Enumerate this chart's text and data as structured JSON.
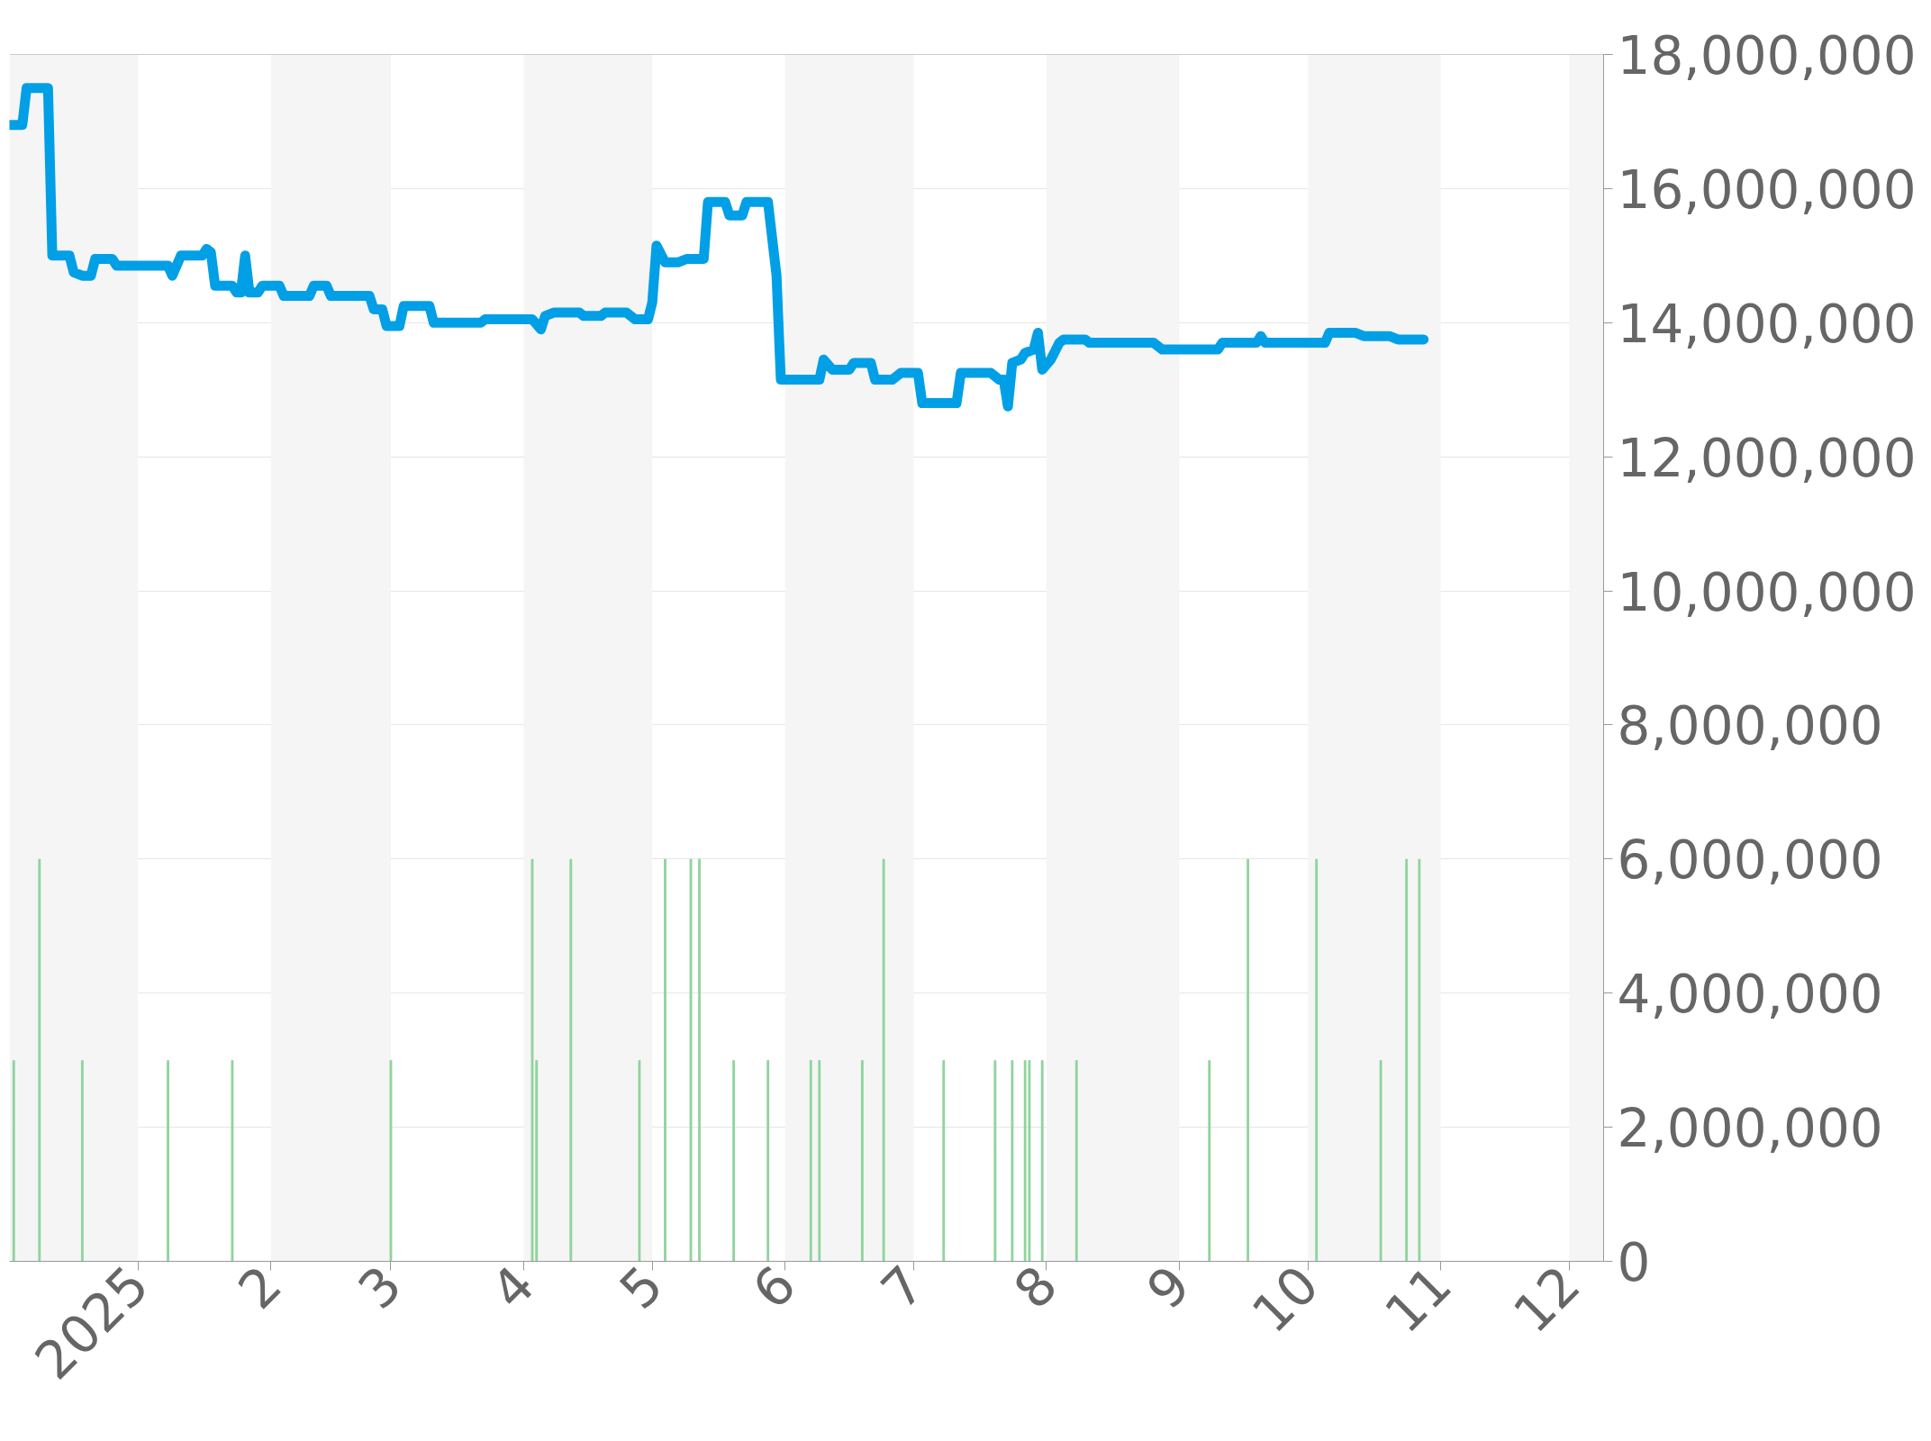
{
  "chart_data": {
    "type": "line",
    "xlim": [
      "2024-12-02",
      "2025-12-09"
    ],
    "xticks": [
      {
        "value": "2025-01-01",
        "label": "2025"
      },
      {
        "value": "2025-02-01",
        "label": "2"
      },
      {
        "value": "2025-03-01",
        "label": "3"
      },
      {
        "value": "2025-04-01",
        "label": "4"
      },
      {
        "value": "2025-05-01",
        "label": "5"
      },
      {
        "value": "2025-06-01",
        "label": "6"
      },
      {
        "value": "2025-07-01",
        "label": "7"
      },
      {
        "value": "2025-08-01",
        "label": "8"
      },
      {
        "value": "2025-09-01",
        "label": "9"
      },
      {
        "value": "2025-10-01",
        "label": "10"
      },
      {
        "value": "2025-11-01",
        "label": "11"
      },
      {
        "value": "2025-12-01",
        "label": "12"
      }
    ],
    "ylim": [
      0,
      18000000
    ],
    "yticks": [
      {
        "value": 0,
        "label": "0"
      },
      {
        "value": 2000000,
        "label": "2,000,000"
      },
      {
        "value": 4000000,
        "label": "4,000,000"
      },
      {
        "value": 6000000,
        "label": "6,000,000"
      },
      {
        "value": 8000000,
        "label": "8,000,000"
      },
      {
        "value": 10000000,
        "label": "10,000,000"
      },
      {
        "value": 12000000,
        "label": "12,000,000"
      },
      {
        "value": 14000000,
        "label": "14,000,000"
      },
      {
        "value": 16000000,
        "label": "16,000,000"
      },
      {
        "value": 18000000,
        "label": "18,000,000"
      }
    ],
    "grid": "y",
    "bands": [
      {
        "axis": "x",
        "from": "2024-12-02",
        "to": "2025-01-01",
        "color": "#f5f5f5"
      },
      {
        "axis": "x",
        "from": "2025-02-01",
        "to": "2025-03-01",
        "color": "#f5f5f5"
      },
      {
        "axis": "x",
        "from": "2025-04-01",
        "to": "2025-05-01",
        "color": "#f5f5f5"
      },
      {
        "axis": "x",
        "from": "2025-06-01",
        "to": "2025-07-01",
        "color": "#f5f5f5"
      },
      {
        "axis": "x",
        "from": "2025-08-01",
        "to": "2025-09-01",
        "color": "#f5f5f5"
      },
      {
        "axis": "x",
        "from": "2025-10-01",
        "to": "2025-11-01",
        "color": "#f5f5f5"
      },
      {
        "axis": "x",
        "from": "2025-12-01",
        "to": "2025-12-09",
        "color": "#f5f5f5"
      }
    ],
    "series": [
      {
        "type": "bar",
        "color": "#8fd49d",
        "x": [
          "2024-12-03",
          "2024-12-09",
          "2024-12-19",
          "2025-01-08",
          "2025-01-23",
          "2025-03-01",
          "2025-04-03",
          "2025-04-04",
          "2025-04-12",
          "2025-04-28",
          "2025-05-04",
          "2025-05-10",
          "2025-05-12",
          "2025-05-20",
          "2025-05-28",
          "2025-06-07",
          "2025-06-09",
          "2025-06-19",
          "2025-06-24",
          "2025-07-08",
          "2025-07-20",
          "2025-07-24",
          "2025-07-27",
          "2025-07-28",
          "2025-07-31",
          "2025-08-08",
          "2025-09-08",
          "2025-09-17",
          "2025-10-03",
          "2025-10-18",
          "2025-10-24",
          "2025-10-27"
        ],
        "values": [
          3000000,
          6000000,
          3000000,
          3000000,
          3000000,
          3000000,
          6000000,
          3000000,
          6000000,
          3000000,
          6000000,
          6000000,
          6000000,
          3000000,
          3000000,
          3000000,
          3000000,
          3000000,
          6000000,
          3000000,
          3000000,
          3000000,
          3000000,
          3000000,
          3000000,
          3000000,
          3000000,
          6000000,
          6000000,
          3000000,
          6000000,
          6000000
        ]
      },
      {
        "color": "#009fe6",
        "x": [
          "2024-12-02",
          "2024-12-05",
          "2024-12-06",
          "2024-12-11",
          "2024-12-12",
          "2024-12-16",
          "2024-12-17",
          "2024-12-19",
          "2024-12-21",
          "2024-12-22",
          "2024-12-26",
          "2024-12-27",
          "2025-01-08",
          "2025-01-09",
          "2025-01-11",
          "2025-01-16",
          "2025-01-17",
          "2025-01-18",
          "2025-01-19",
          "2025-01-23",
          "2025-01-24",
          "2025-01-25",
          "2025-01-26",
          "2025-01-27",
          "2025-01-29",
          "2025-01-30",
          "2025-02-03",
          "2025-02-04",
          "2025-02-10",
          "2025-02-11",
          "2025-02-14",
          "2025-02-15",
          "2025-02-24",
          "2025-02-25",
          "2025-02-27",
          "2025-02-28",
          "2025-03-03",
          "2025-03-04",
          "2025-03-10",
          "2025-03-11",
          "2025-03-22",
          "2025-03-23",
          "2025-04-03",
          "2025-04-05",
          "2025-04-06",
          "2025-04-08",
          "2025-04-14",
          "2025-04-15",
          "2025-04-19",
          "2025-04-20",
          "2025-04-25",
          "2025-04-27",
          "2025-04-30",
          "2025-05-01",
          "2025-05-02",
          "2025-05-04",
          "2025-05-07",
          "2025-05-09",
          "2025-05-13",
          "2025-05-14",
          "2025-05-18",
          "2025-05-19",
          "2025-05-22",
          "2025-05-23",
          "2025-05-28",
          "2025-05-30",
          "2025-05-31",
          "2025-06-09",
          "2025-06-10",
          "2025-06-12",
          "2025-06-16",
          "2025-06-17",
          "2025-06-21",
          "2025-06-22",
          "2025-06-26",
          "2025-06-28",
          "2025-07-02",
          "2025-07-03",
          "2025-07-11",
          "2025-07-12",
          "2025-07-19",
          "2025-07-21",
          "2025-07-22",
          "2025-07-23",
          "2025-07-24",
          "2025-07-26",
          "2025-07-27",
          "2025-07-29",
          "2025-07-30",
          "2025-07-31",
          "2025-08-02",
          "2025-08-04",
          "2025-08-05",
          "2025-08-10",
          "2025-08-11",
          "2025-08-26",
          "2025-08-28",
          "2025-09-10",
          "2025-09-11",
          "2025-09-19",
          "2025-09-20",
          "2025-09-21",
          "2025-10-05",
          "2025-10-06",
          "2025-10-12",
          "2025-10-14",
          "2025-10-20",
          "2025-10-22",
          "2025-10-28"
        ],
        "values": [
          16950000,
          16950000,
          17500000,
          17500000,
          15000000,
          15000000,
          14750000,
          14700000,
          14700000,
          14950000,
          14950000,
          14850000,
          14850000,
          14700000,
          15000000,
          15000000,
          15100000,
          15050000,
          14550000,
          14550000,
          14450000,
          14450000,
          15000000,
          14450000,
          14450000,
          14550000,
          14550000,
          14400000,
          14400000,
          14550000,
          14550000,
          14400000,
          14400000,
          14200000,
          14200000,
          13950000,
          13950000,
          14250000,
          14250000,
          14000000,
          14000000,
          14050000,
          14050000,
          13900000,
          14100000,
          14150000,
          14150000,
          14100000,
          14100000,
          14150000,
          14150000,
          14050000,
          14050000,
          14300000,
          15150000,
          14900000,
          14900000,
          14950000,
          14950000,
          15800000,
          15800000,
          15600000,
          15600000,
          15800000,
          15800000,
          14700000,
          13150000,
          13150000,
          13450000,
          13300000,
          13300000,
          13400000,
          13400000,
          13150000,
          13150000,
          13250000,
          13250000,
          12800000,
          12800000,
          13250000,
          13250000,
          13150000,
          13150000,
          12750000,
          13400000,
          13450000,
          13550000,
          13600000,
          13850000,
          13300000,
          13450000,
          13700000,
          13750000,
          13750000,
          13700000,
          13700000,
          13600000,
          13600000,
          13700000,
          13700000,
          13800000,
          13700000,
          13700000,
          13850000,
          13850000,
          13800000,
          13800000,
          13750000,
          13750000
        ]
      }
    ]
  }
}
